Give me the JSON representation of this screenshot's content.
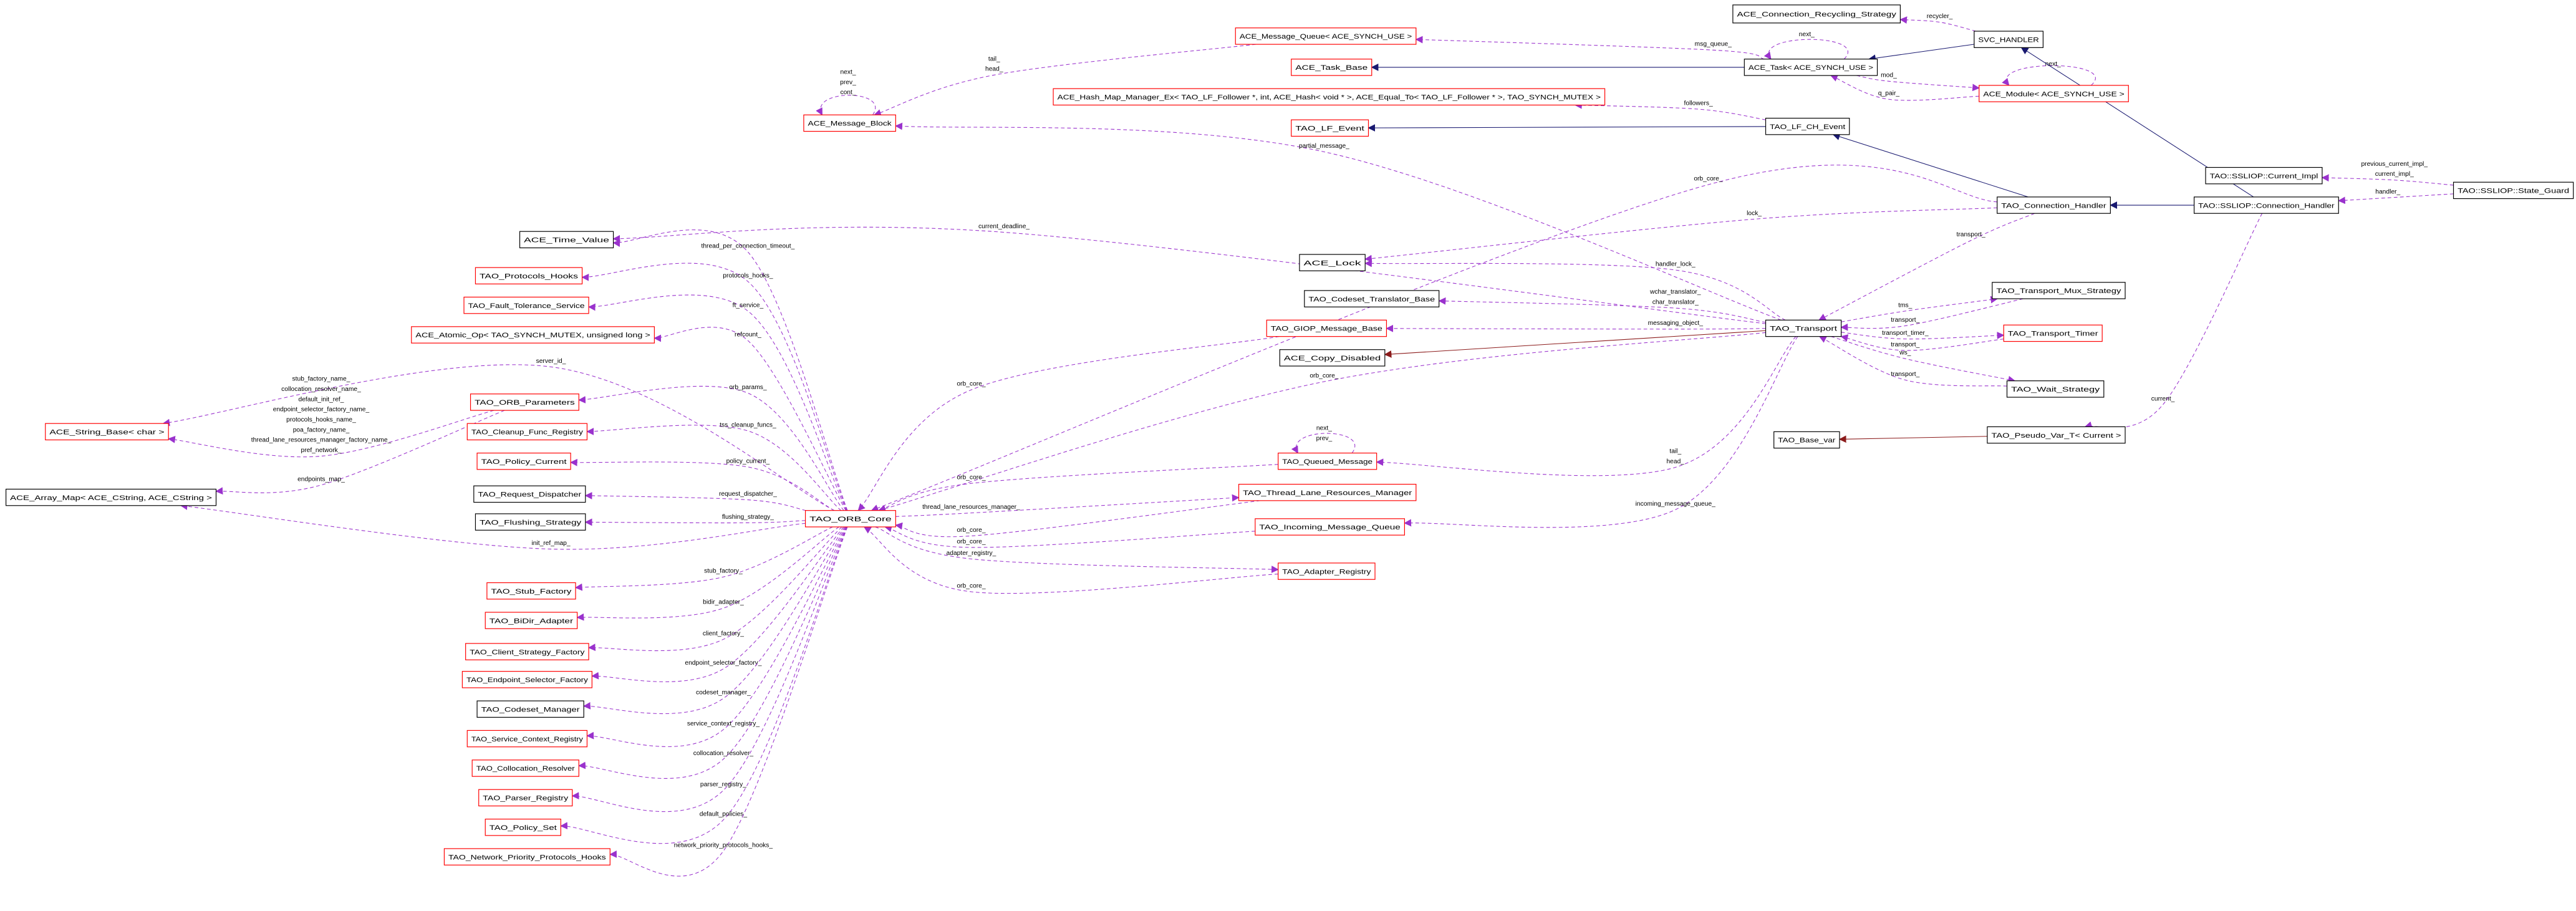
{
  "colors": {
    "member_edge": "#9a32cd",
    "inheritance_edge": "#191970",
    "private_inheritance_edge": "#8b1a1a",
    "node_border_documented": "#000000",
    "node_border_undocumented": "#ff0000",
    "focus_node_fill": "#bfbfbf"
  },
  "nodes": [
    {
      "id": "recycling",
      "label": "ACE_Connection_Recycling_Strategy",
      "border": "black"
    },
    {
      "id": "svc",
      "label": "SVC_HANDLER",
      "border": "black"
    },
    {
      "id": "msgqueue",
      "label": "ACE_Message_Queue< ACE_SYNCH_USE >",
      "border": "red"
    },
    {
      "id": "taskbase",
      "label": "ACE_Task_Base",
      "border": "red"
    },
    {
      "id": "task",
      "label": "ACE_Task< ACE_SYNCH_USE >",
      "border": "black"
    },
    {
      "id": "hashmap",
      "label": "ACE_Hash_Map_Manager_Ex< TAO_LF_Follower *, int, ACE_Hash< void * >, ACE_Equal_To< TAO_LF_Follower * >, TAO_SYNCH_MUTEX >",
      "border": "red"
    },
    {
      "id": "module",
      "label": "ACE_Module< ACE_SYNCH_USE >",
      "border": "red"
    },
    {
      "id": "msgblock",
      "label": "ACE_Message_Block",
      "border": "red"
    },
    {
      "id": "lfevent",
      "label": "TAO_LF_Event",
      "border": "red"
    },
    {
      "id": "lfch",
      "label": "TAO_LF_CH_Event",
      "border": "black"
    },
    {
      "id": "currimpl",
      "label": "TAO::SSLIOP::Current_Impl",
      "border": "black"
    },
    {
      "id": "guard",
      "label": "TAO::SSLIOP::State_Guard",
      "border": "black",
      "focus": true
    },
    {
      "id": "connh",
      "label": "TAO_Connection_Handler",
      "border": "black"
    },
    {
      "id": "sslconn",
      "label": "TAO::SSLIOP::Connection_Handler",
      "border": "black"
    },
    {
      "id": "timevalue",
      "label": "ACE_Time_Value",
      "border": "black"
    },
    {
      "id": "acelock",
      "label": "ACE_Lock",
      "border": "black"
    },
    {
      "id": "protocolshooks",
      "label": "TAO_Protocols_Hooks",
      "border": "red"
    },
    {
      "id": "codesettrans",
      "label": "TAO_Codeset_Translator_Base",
      "border": "black"
    },
    {
      "id": "mux",
      "label": "TAO_Transport_Mux_Strategy",
      "border": "black"
    },
    {
      "id": "ft",
      "label": "TAO_Fault_Tolerance_Service",
      "border": "red"
    },
    {
      "id": "giop",
      "label": "TAO_GIOP_Message_Base",
      "border": "red"
    },
    {
      "id": "transport",
      "label": "TAO_Transport",
      "border": "black"
    },
    {
      "id": "timer",
      "label": "TAO_Transport_Timer",
      "border": "red"
    },
    {
      "id": "atomic",
      "label": "ACE_Atomic_Op< TAO_SYNCH_MUTEX, unsigned long >",
      "border": "red"
    },
    {
      "id": "copydisabled",
      "label": "ACE_Copy_Disabled",
      "border": "black"
    },
    {
      "id": "wait",
      "label": "TAO_Wait_Strategy",
      "border": "black"
    },
    {
      "id": "orbparams",
      "label": "TAO_ORB_Parameters",
      "border": "red"
    },
    {
      "id": "stringbase",
      "label": "ACE_String_Base< char >",
      "border": "red"
    },
    {
      "id": "cleanup",
      "label": "TAO_Cleanup_Func_Registry",
      "border": "red"
    },
    {
      "id": "basevar",
      "label": "TAO_Base_var",
      "border": "black"
    },
    {
      "id": "pseudo",
      "label": "TAO_Pseudo_Var_T< Current >",
      "border": "black"
    },
    {
      "id": "queued",
      "label": "TAO_Queued_Message",
      "border": "red"
    },
    {
      "id": "policycurrent",
      "label": "TAO_Policy_Current",
      "border": "red"
    },
    {
      "id": "arraymap",
      "label": "ACE_Array_Map< ACE_CString, ACE_CString >",
      "border": "black"
    },
    {
      "id": "requestdisp",
      "label": "TAO_Request_Dispatcher",
      "border": "black"
    },
    {
      "id": "threadlane",
      "label": "TAO_Thread_Lane_Resources_Manager",
      "border": "red"
    },
    {
      "id": "flushing",
      "label": "TAO_Flushing_Strategy",
      "border": "black"
    },
    {
      "id": "orbcore",
      "label": "TAO_ORB_Core",
      "border": "red"
    },
    {
      "id": "incoming",
      "label": "TAO_Incoming_Message_Queue",
      "border": "red"
    },
    {
      "id": "adapter",
      "label": "TAO_Adapter_Registry",
      "border": "red"
    },
    {
      "id": "stub",
      "label": "TAO_Stub_Factory",
      "border": "red"
    },
    {
      "id": "bidir",
      "label": "TAO_BiDir_Adapter",
      "border": "red"
    },
    {
      "id": "client",
      "label": "TAO_Client_Strategy_Factory",
      "border": "red"
    },
    {
      "id": "endpoint",
      "label": "TAO_Endpoint_Selector_Factory",
      "border": "red"
    },
    {
      "id": "codesetmgr",
      "label": "TAO_Codeset_Manager",
      "border": "black"
    },
    {
      "id": "service",
      "label": "TAO_Service_Context_Registry",
      "border": "red"
    },
    {
      "id": "collocation",
      "label": "TAO_Collocation_Resolver",
      "border": "red"
    },
    {
      "id": "parser",
      "label": "TAO_Parser_Registry",
      "border": "red"
    },
    {
      "id": "policyset",
      "label": "TAO_Policy_Set",
      "border": "red"
    },
    {
      "id": "network",
      "label": "TAO_Network_Priority_Protocols_Hooks",
      "border": "red"
    }
  ],
  "edges": [
    {
      "from": "svc",
      "to": "task",
      "type": "inheritance",
      "labels": []
    },
    {
      "from": "svc",
      "to": "recycling",
      "type": "member",
      "labels": [
        "recycler_"
      ]
    },
    {
      "from": "task",
      "to": "taskbase",
      "type": "inheritance",
      "labels": []
    },
    {
      "from": "task",
      "to": "msgqueue",
      "type": "member",
      "labels": [
        "msg_queue_"
      ]
    },
    {
      "from": "task",
      "to": "task",
      "type": "member",
      "labels": [
        "next_"
      ]
    },
    {
      "from": "task",
      "to": "module",
      "type": "member",
      "labels": [
        "mod_"
      ]
    },
    {
      "from": "module",
      "to": "task",
      "type": "member",
      "labels": [
        "q_pair_"
      ]
    },
    {
      "from": "module",
      "to": "module",
      "type": "member",
      "labels": [
        "next_"
      ]
    },
    {
      "from": "msgqueue",
      "to": "msgblock",
      "type": "member",
      "labels": [
        "tail_",
        "head_"
      ]
    },
    {
      "from": "msgblock",
      "to": "msgblock",
      "type": "member",
      "labels": [
        "next_",
        "prev_",
        "cont_"
      ]
    },
    {
      "from": "lfch",
      "to": "lfevent",
      "type": "inheritance",
      "labels": []
    },
    {
      "from": "lfch",
      "to": "hashmap",
      "type": "member",
      "labels": [
        "followers_"
      ]
    },
    {
      "from": "connh",
      "to": "lfch",
      "type": "inheritance",
      "labels": []
    },
    {
      "from": "sslconn",
      "to": "connh",
      "type": "inheritance",
      "labels": []
    },
    {
      "from": "sslconn",
      "to": "svc",
      "type": "inheritance",
      "labels": []
    },
    {
      "from": "guard",
      "to": "currimpl",
      "type": "member",
      "labels": [
        "previous_current_impl_",
        "current_impl_"
      ]
    },
    {
      "from": "guard",
      "to": "sslconn",
      "type": "member",
      "labels": [
        "handler_"
      ]
    },
    {
      "from": "sslconn",
      "to": "pseudo",
      "type": "member",
      "labels": [
        "current_"
      ]
    },
    {
      "from": "pseudo",
      "to": "basevar",
      "type": "private",
      "labels": []
    },
    {
      "from": "transport",
      "to": "copydisabled",
      "type": "private",
      "labels": []
    },
    {
      "from": "connh",
      "to": "orbcore",
      "type": "member",
      "labels": [
        "orb_core_"
      ]
    },
    {
      "from": "connh",
      "to": "acelock",
      "type": "member",
      "labels": [
        "lock_"
      ]
    },
    {
      "from": "connh",
      "to": "transport",
      "type": "member",
      "labels": [
        "transport_"
      ]
    },
    {
      "from": "transport",
      "to": "msgblock",
      "type": "member",
      "labels": [
        "partial_message_"
      ]
    },
    {
      "from": "transport",
      "to": "timevalue",
      "type": "member",
      "labels": [
        "current_deadline_"
      ]
    },
    {
      "from": "transport",
      "to": "acelock",
      "type": "member",
      "labels": [
        "handler_lock_"
      ]
    },
    {
      "from": "transport",
      "to": "codesettrans",
      "type": "member",
      "labels": [
        "wchar_translator_",
        "char_translator_"
      ]
    },
    {
      "from": "transport",
      "to": "giop",
      "type": "member",
      "labels": [
        "messaging_object_"
      ]
    },
    {
      "from": "transport",
      "to": "orbcore",
      "type": "member",
      "labels": [
        "orb_core_"
      ]
    },
    {
      "from": "transport",
      "to": "mux",
      "type": "member",
      "labels": [
        "tms_"
      ]
    },
    {
      "from": "mux",
      "to": "transport",
      "type": "member",
      "labels": [
        "transport_"
      ]
    },
    {
      "from": "transport",
      "to": "timer",
      "type": "member",
      "labels": [
        "transport_timer_"
      ]
    },
    {
      "from": "timer",
      "to": "transport",
      "type": "member",
      "labels": [
        "transport_"
      ]
    },
    {
      "from": "transport",
      "to": "wait",
      "type": "member",
      "labels": [
        "ws_"
      ]
    },
    {
      "from": "wait",
      "to": "transport",
      "type": "member",
      "labels": [
        "transport_"
      ]
    },
    {
      "from": "transport",
      "to": "queued",
      "type": "member",
      "labels": [
        "tail_",
        "head_"
      ]
    },
    {
      "from": "transport",
      "to": "incoming",
      "type": "member",
      "labels": [
        "incoming_message_queue_"
      ]
    },
    {
      "from": "giop",
      "to": "orbcore",
      "type": "member",
      "labels": [
        "orb_core_"
      ]
    },
    {
      "from": "queued",
      "to": "orbcore",
      "type": "member",
      "labels": [
        "orb_core_"
      ]
    },
    {
      "from": "queued",
      "to": "queued",
      "type": "member",
      "labels": [
        "next_",
        "prev_"
      ]
    },
    {
      "from": "orbcore",
      "to": "threadlane",
      "type": "member",
      "labels": [
        "thread_lane_resources_manager_"
      ]
    },
    {
      "from": "threadlane",
      "to": "orbcore",
      "type": "member",
      "labels": [
        "orb_core_"
      ]
    },
    {
      "from": "incoming",
      "to": "orbcore",
      "type": "member",
      "labels": [
        "orb_core_"
      ]
    },
    {
      "from": "orbcore",
      "to": "adapter",
      "type": "member",
      "labels": [
        "adapter_registry_"
      ]
    },
    {
      "from": "adapter",
      "to": "orbcore",
      "type": "member",
      "labels": [
        "orb_core_"
      ]
    },
    {
      "from": "orbcore",
      "to": "timevalue",
      "type": "member",
      "labels": [
        "thread_per_connection_timeout_"
      ]
    },
    {
      "from": "orbcore",
      "to": "protocolshooks",
      "type": "member",
      "labels": [
        "protocols_hooks_"
      ]
    },
    {
      "from": "orbcore",
      "to": "ft",
      "type": "member",
      "labels": [
        "ft_service_"
      ]
    },
    {
      "from": "orbcore",
      "to": "atomic",
      "type": "member",
      "labels": [
        "refcount_"
      ]
    },
    {
      "from": "orbcore",
      "to": "stringbase",
      "type": "member",
      "labels": [
        "server_id_"
      ]
    },
    {
      "from": "orbcore",
      "to": "orbparams",
      "type": "member",
      "labels": [
        "orb_params_"
      ]
    },
    {
      "from": "orbcore",
      "to": "cleanup",
      "type": "member",
      "labels": [
        "tss_cleanup_funcs_"
      ]
    },
    {
      "from": "orbcore",
      "to": "policycurrent",
      "type": "member",
      "labels": [
        "policy_current_"
      ]
    },
    {
      "from": "orbcore",
      "to": "requestdisp",
      "type": "member",
      "labels": [
        "request_dispatcher_"
      ]
    },
    {
      "from": "orbcore",
      "to": "flushing",
      "type": "member",
      "labels": [
        "flushing_strategy_"
      ]
    },
    {
      "from": "orbcore",
      "to": "arraymap",
      "type": "member",
      "labels": [
        "init_ref_map_"
      ]
    },
    {
      "from": "orbcore",
      "to": "stub",
      "type": "member",
      "labels": [
        "stub_factory_"
      ]
    },
    {
      "from": "orbcore",
      "to": "bidir",
      "type": "member",
      "labels": [
        "bidir_adapter_"
      ]
    },
    {
      "from": "orbcore",
      "to": "client",
      "type": "member",
      "labels": [
        "client_factory_"
      ]
    },
    {
      "from": "orbcore",
      "to": "endpoint",
      "type": "member",
      "labels": [
        "endpoint_selector_factory_"
      ]
    },
    {
      "from": "orbcore",
      "to": "codesetmgr",
      "type": "member",
      "labels": [
        "codeset_manager_"
      ]
    },
    {
      "from": "orbcore",
      "to": "service",
      "type": "member",
      "labels": [
        "service_context_registry_"
      ]
    },
    {
      "from": "orbcore",
      "to": "collocation",
      "type": "member",
      "labels": [
        "collocation_resolver_"
      ]
    },
    {
      "from": "orbcore",
      "to": "parser",
      "type": "member",
      "labels": [
        "parser_registry_"
      ]
    },
    {
      "from": "orbcore",
      "to": "policyset",
      "type": "member",
      "labels": [
        "default_policies_"
      ]
    },
    {
      "from": "orbcore",
      "to": "network",
      "type": "member",
      "labels": [
        "network_priority_protocols_hooks_"
      ]
    },
    {
      "from": "orbparams",
      "to": "stringbase",
      "type": "member",
      "labels": [
        "stub_factory_name_",
        "collocation_resolver_name_",
        "default_init_ref_",
        "endpoint_selector_factory_name_",
        "protocols_hooks_name_",
        "poa_factory_name_",
        "thread_lane_resources_manager_factory_name_",
        "pref_network_"
      ]
    },
    {
      "from": "orbparams",
      "to": "arraymap",
      "type": "member",
      "labels": [
        "endpoints_map_"
      ]
    }
  ]
}
